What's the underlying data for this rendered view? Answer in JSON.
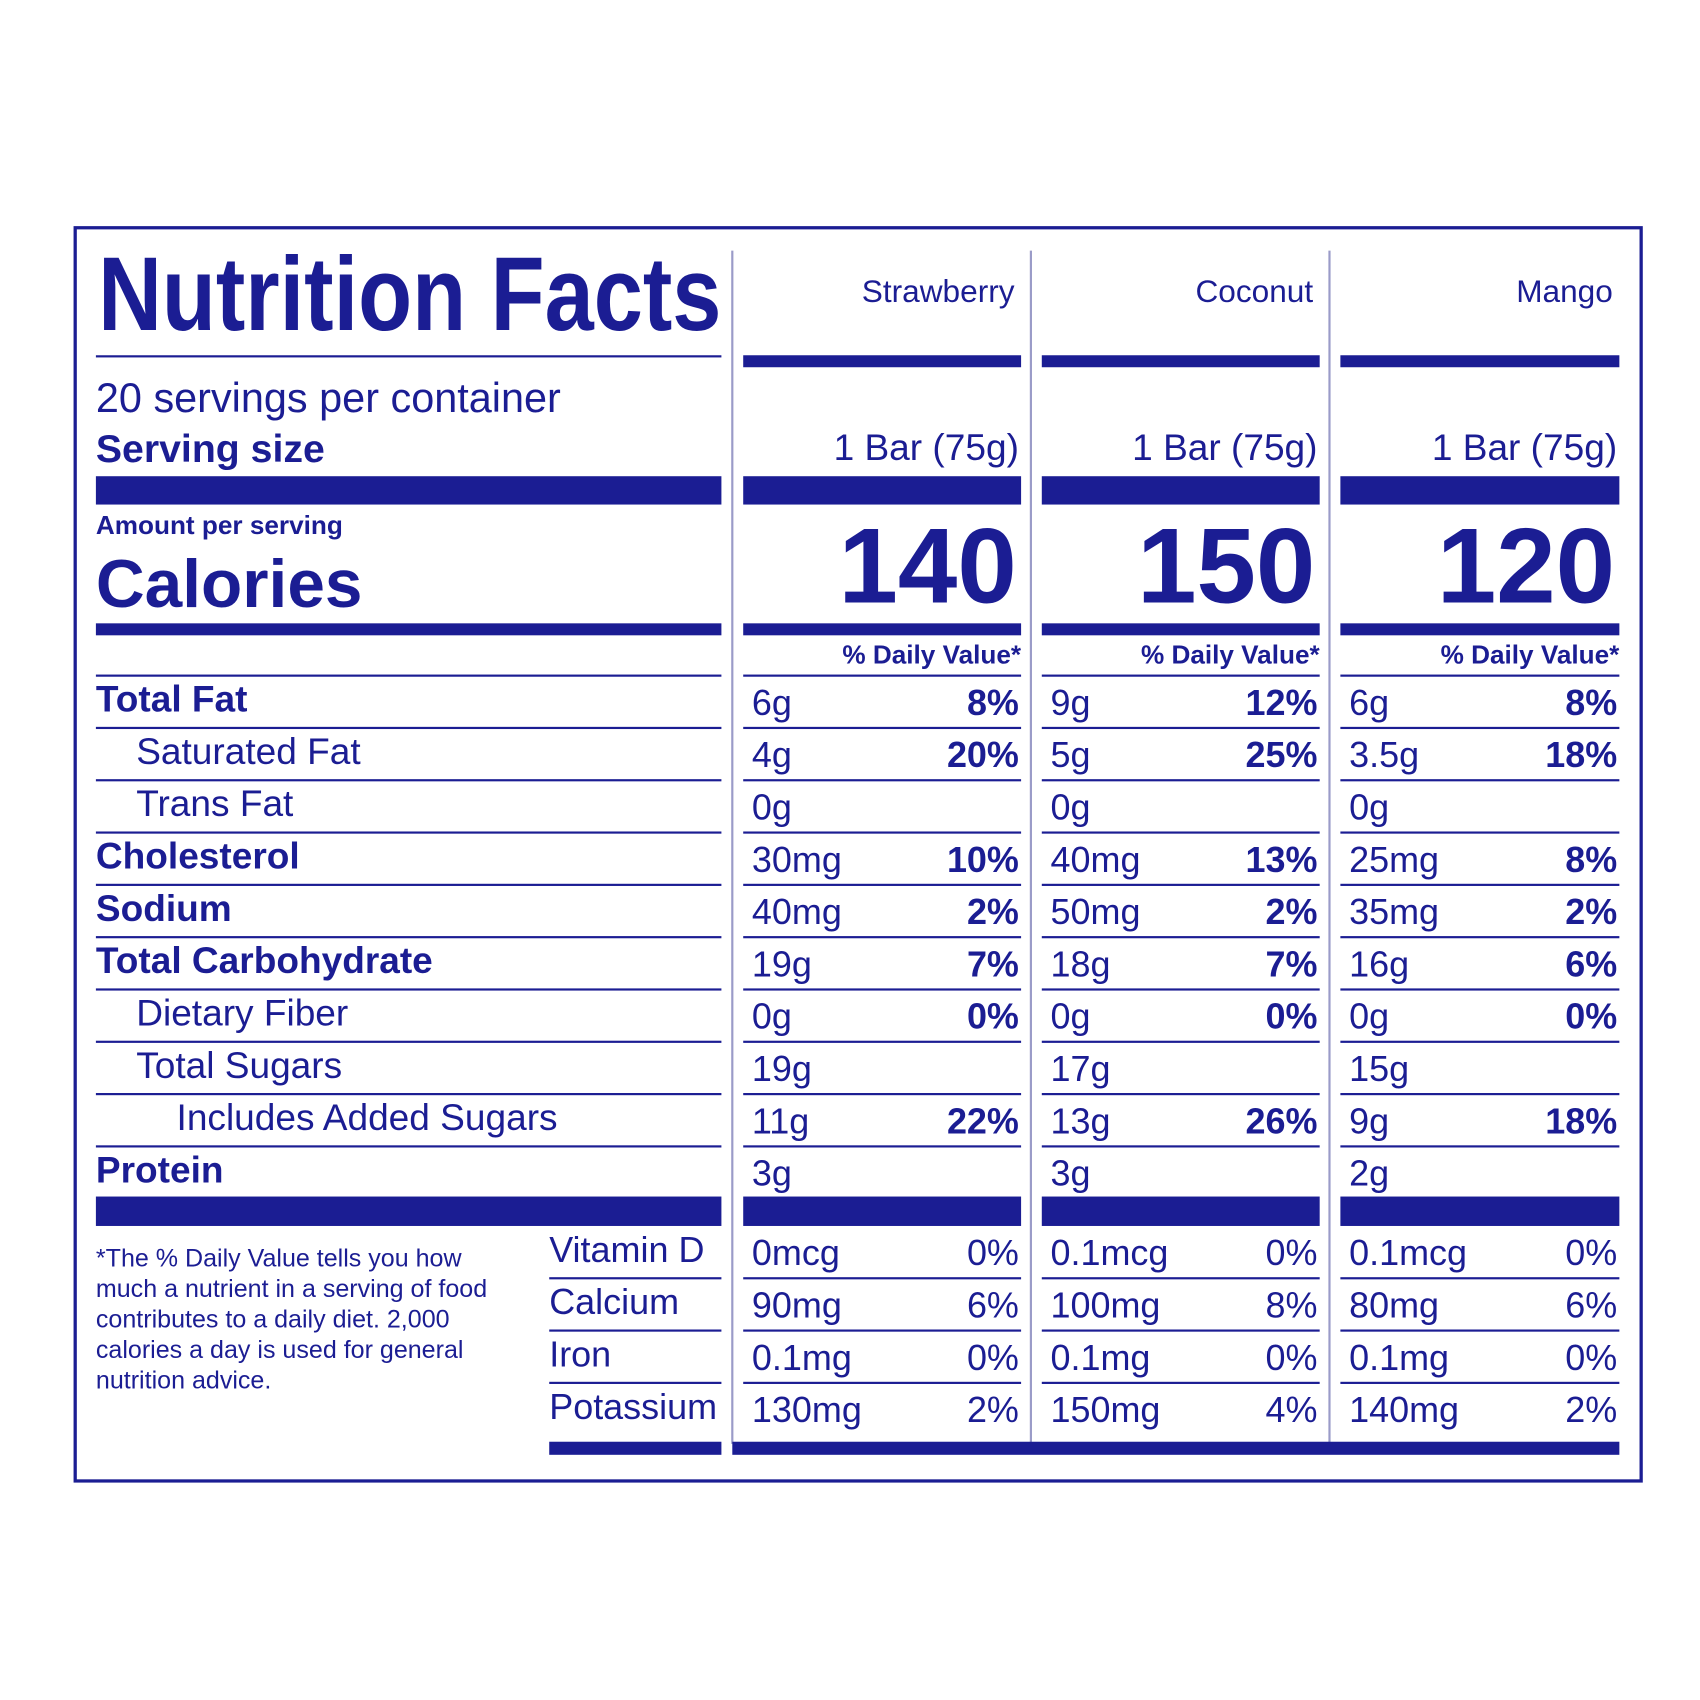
{
  "title": "Nutrition Facts",
  "servings_per_container": "20 servings per container",
  "serving_size_label": "Serving size",
  "amount_per_serving": "Amount per serving",
  "calories_label": "Calories",
  "daily_value_header": "% Daily Value*",
  "nutrient_labels": [
    "Total Fat",
    "Saturated Fat",
    "Trans Fat",
    "Cholesterol",
    "Sodium",
    "Total Carbohydrate",
    "Dietary Fiber",
    "Total Sugars",
    "Includes Added Sugars",
    "Protein"
  ],
  "vitamin_labels": [
    "Vitamin D",
    "Calcium",
    "Iron",
    "Potassium"
  ],
  "footnote_lines": [
    "*The % Daily Value tells you how",
    "much a nutrient in a serving of food",
    "contributes to a daily diet. 2,000",
    "calories a day is used for general",
    "nutrition advice."
  ],
  "products": [
    {
      "name": "Strawberry",
      "serving_size": "1 Bar (75g)",
      "calories": 140,
      "nutrients": [
        {
          "amount": "6g",
          "dv": "8%"
        },
        {
          "amount": "4g",
          "dv": "20%"
        },
        {
          "amount": "0g"
        },
        {
          "amount": "30mg",
          "dv": "10%"
        },
        {
          "amount": "40mg",
          "dv": "2%"
        },
        {
          "amount": "19g",
          "dv": "7%"
        },
        {
          "amount": "0g",
          "dv": "0%"
        },
        {
          "amount": "19g"
        },
        {
          "amount": "11g",
          "dv": "22%"
        },
        {
          "amount": "3g"
        }
      ],
      "vitamins": [
        {
          "amount": "0mcg",
          "dv": "0%"
        },
        {
          "amount": "90mg",
          "dv": "6%"
        },
        {
          "amount": "0.1mg",
          "dv": "0%"
        },
        {
          "amount": "130mg",
          "dv": "2%"
        }
      ]
    },
    {
      "name": "Coconut",
      "serving_size": "1 Bar (75g)",
      "calories": 150,
      "nutrients": [
        {
          "amount": "9g",
          "dv": "12%"
        },
        {
          "amount": "5g",
          "dv": "25%"
        },
        {
          "amount": "0g"
        },
        {
          "amount": "40mg",
          "dv": "13%"
        },
        {
          "amount": "50mg",
          "dv": "2%"
        },
        {
          "amount": "18g",
          "dv": "7%"
        },
        {
          "amount": "0g",
          "dv": "0%"
        },
        {
          "amount": "17g"
        },
        {
          "amount": "13g",
          "dv": "26%"
        },
        {
          "amount": "3g"
        }
      ],
      "vitamins": [
        {
          "amount": "0.1mcg",
          "dv": "0%"
        },
        {
          "amount": "100mg",
          "dv": "8%"
        },
        {
          "amount": "0.1mg",
          "dv": "0%"
        },
        {
          "amount": "150mg",
          "dv": "4%"
        }
      ]
    },
    {
      "name": "Mango",
      "serving_size": "1 Bar (75g)",
      "calories": 120,
      "nutrients": [
        {
          "amount": "6g",
          "dv": "8%"
        },
        {
          "amount": "3.5g",
          "dv": "18%"
        },
        {
          "amount": "0g"
        },
        {
          "amount": "25mg",
          "dv": "8%"
        },
        {
          "amount": "35mg",
          "dv": "2%"
        },
        {
          "amount": "16g",
          "dv": "6%"
        },
        {
          "amount": "0g",
          "dv": "0%"
        },
        {
          "amount": "15g"
        },
        {
          "amount": "9g",
          "dv": "18%"
        },
        {
          "amount": "2g"
        }
      ],
      "vitamins": [
        {
          "amount": "0.1mcg",
          "dv": "0%"
        },
        {
          "amount": "80mg",
          "dv": "6%"
        },
        {
          "amount": "0.1mg",
          "dv": "0%"
        },
        {
          "amount": "140mg",
          "dv": "2%"
        }
      ]
    }
  ]
}
